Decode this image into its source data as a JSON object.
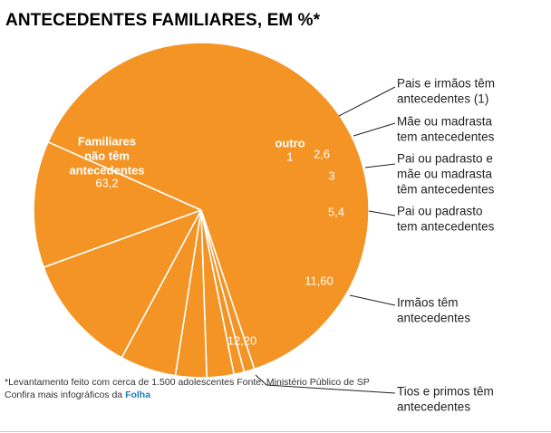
{
  "chart_data": {
    "type": "pie",
    "title": "ANTECEDENTES FAMILIARES, EM %*",
    "slices": [
      {
        "id": "familiares-sem",
        "label": [
          "Familiares",
          "não têm",
          "antecedentes"
        ],
        "value_text": "63,2",
        "value": 63.2
      },
      {
        "id": "tios-primos",
        "label": [
          "Tios e primos têm",
          "antecedentes"
        ],
        "value_text": "12,20",
        "value": 12.2
      },
      {
        "id": "irmaos",
        "label": [
          "Irmãos têm",
          "antecedentes"
        ],
        "value_text": "11,60",
        "value": 11.6
      },
      {
        "id": "pai-padrasto",
        "label": [
          "Pai ou padrasto",
          "tem antecedentes"
        ],
        "value_text": "5,4",
        "value": 5.4
      },
      {
        "id": "pai-mae",
        "label": [
          "Pai ou padrasto e",
          "mãe ou madrasta",
          "têm antecedentes"
        ],
        "value_text": "3",
        "value": 3
      },
      {
        "id": "mae-madrasta",
        "label": [
          "Mãe ou madrasta",
          "tem antecedentes"
        ],
        "value_text": "2,6",
        "value": 2.6
      },
      {
        "id": "outro",
        "label": [
          "outro"
        ],
        "value_text": "1",
        "value": 1
      },
      {
        "id": "pais-irmaos",
        "label": [
          "Pais e irmãos têm",
          "antecedentes (1)"
        ],
        "value_text": "",
        "value": 1
      }
    ],
    "colors": {
      "slice": "#f39425",
      "border": "#ffffff",
      "leader": "#222222",
      "label": "#222222"
    }
  },
  "footer": {
    "note": "*Levantamento feito com cerca de 1.500 adolescentes Fonte: Ministério Público de SP",
    "credit_prefix": "Confira mais infográficos da ",
    "credit_brand": "Folha"
  }
}
